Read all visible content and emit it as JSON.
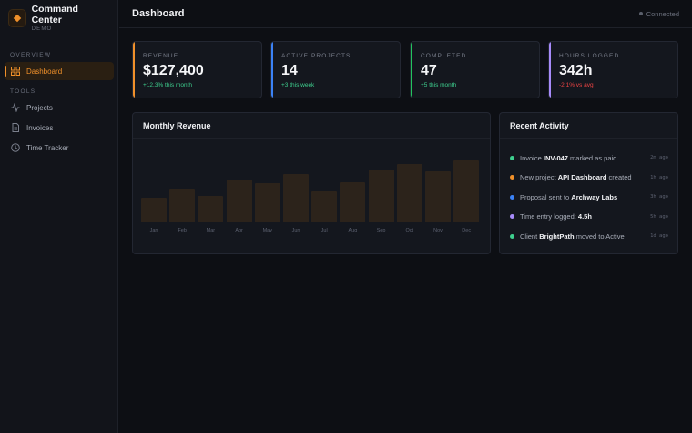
{
  "brand": {
    "title": "Command Center",
    "subtitle": "DEMO"
  },
  "sidebar": {
    "sections": [
      {
        "label": "OVERVIEW",
        "items": [
          {
            "label": "Dashboard",
            "icon": "grid-icon",
            "active": true
          }
        ]
      },
      {
        "label": "TOOLS",
        "items": [
          {
            "label": "Projects",
            "icon": "activity-icon"
          },
          {
            "label": "Invoices",
            "icon": "document-icon"
          },
          {
            "label": "Time Tracker",
            "icon": "clock-icon"
          }
        ]
      }
    ]
  },
  "header": {
    "title": "Dashboard",
    "status": "Connected"
  },
  "stats": [
    {
      "label": "REVENUE",
      "value": "$127,400",
      "delta": "+12.3% this month",
      "accent": "#f0902a",
      "delta_color": "#3ecf8e"
    },
    {
      "label": "ACTIVE PROJECTS",
      "value": "14",
      "delta": "+3 this week",
      "accent": "#3b82f6",
      "delta_color": "#3ecf8e"
    },
    {
      "label": "COMPLETED",
      "value": "47",
      "delta": "+5 this month",
      "accent": "#22c55e",
      "delta_color": "#3ecf8e"
    },
    {
      "label": "HOURS LOGGED",
      "value": "342h",
      "delta": "-2.1% vs avg",
      "accent": "#a78bfa",
      "delta_color": "#ef4444"
    }
  ],
  "revenue_panel": {
    "title": "Monthly Revenue"
  },
  "chart_data": {
    "type": "bar",
    "categories": [
      "Jan",
      "Feb",
      "Mar",
      "Apr",
      "May",
      "Jun",
      "Jul",
      "Aug",
      "Sep",
      "Oct",
      "Nov",
      "Dec"
    ],
    "values": [
      40,
      54,
      42,
      69,
      63,
      78,
      50,
      65,
      85,
      94,
      82,
      100
    ],
    "ylim": [
      0,
      100
    ],
    "grid": false,
    "bar_color": "#2c231b"
  },
  "activity_panel": {
    "title": "Recent Activity",
    "items": [
      {
        "pre": "Invoice ",
        "strong": "INV-047",
        "post": " marked as paid",
        "time": "2m ago",
        "color": "#3ecf8e"
      },
      {
        "pre": "New project ",
        "strong": "API Dashboard",
        "post": " created",
        "time": "1h ago",
        "color": "#f0902a"
      },
      {
        "pre": "Proposal sent to ",
        "strong": "Archway Labs",
        "post": "",
        "time": "3h ago",
        "color": "#3b82f6"
      },
      {
        "pre": "Time entry logged: ",
        "strong": "4.5h",
        "post": "",
        "time": "5h ago",
        "color": "#a78bfa"
      },
      {
        "pre": "Client ",
        "strong": "BrightPath",
        "post": " moved to Active",
        "time": "1d ago",
        "color": "#3ecf8e"
      }
    ]
  }
}
